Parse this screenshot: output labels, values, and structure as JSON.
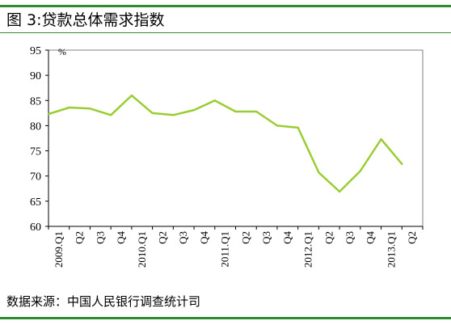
{
  "title": "图 3:贷款总体需求指数",
  "source": "数据来源：中国人民银行调查统计司",
  "colors": {
    "rule": "#2e8b2e",
    "line": "#9acd32",
    "axis": "#000000",
    "frame": "#808080"
  },
  "chart_data": {
    "type": "line",
    "title": "图 3:贷款总体需求指数",
    "ylabel": "%",
    "ylim": [
      60,
      95
    ],
    "yticks": [
      60,
      65,
      70,
      75,
      80,
      85,
      90,
      95
    ],
    "grid": false,
    "legend": "none",
    "categories": [
      "2009.Q1",
      "Q2",
      "Q3",
      "Q4",
      "2010.Q1",
      "Q2",
      "Q3",
      "Q4",
      "2011.Q1",
      "Q2",
      "Q3",
      "Q4",
      "2012.Q1",
      "Q2",
      "Q3",
      "Q4",
      "2013.Q1",
      "Q2"
    ],
    "series": [
      {
        "values": [
          82.3,
          83.6,
          83.4,
          82.1,
          86.0,
          82.5,
          82.1,
          83.1,
          85.0,
          82.8,
          82.8,
          80.0,
          79.6,
          70.7,
          66.9,
          71.0,
          77.3,
          72.4
        ]
      }
    ]
  }
}
